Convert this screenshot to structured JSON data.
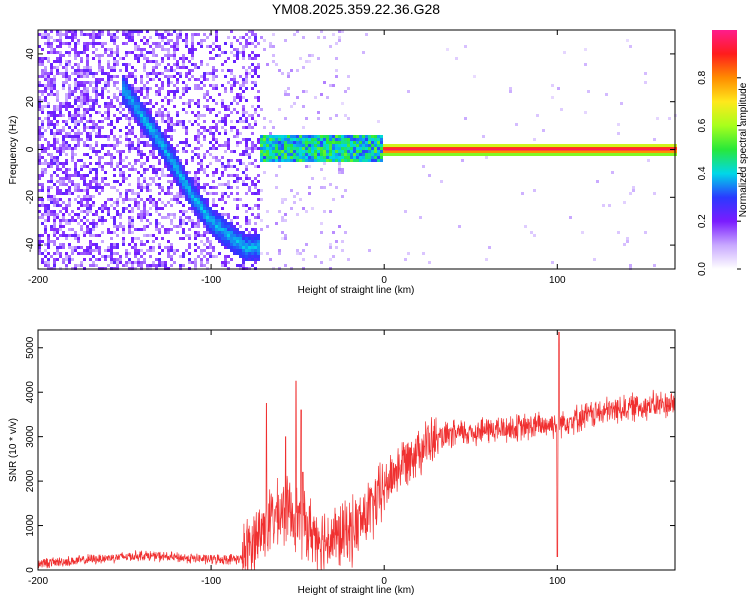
{
  "title": "YM08.2025.359.22.36.G28",
  "chart_data": [
    {
      "type": "heatmap",
      "xlabel": "Height of straight line (km)",
      "ylabel": "Frequency (Hz)",
      "xlim": [
        -200,
        168
      ],
      "ylim": [
        -50,
        50
      ],
      "x_ticks": [
        -200,
        -100,
        0,
        100
      ],
      "x_tick_labels": [
        "-200",
        "-100",
        "0",
        "100"
      ],
      "y_ticks": [
        -40,
        -20,
        0,
        20,
        40
      ],
      "y_tick_labels": [
        "-40",
        "-20",
        "0",
        "20",
        "40"
      ],
      "colorbar": {
        "label": "Normalized spectral amplitude",
        "range": [
          0,
          1
        ],
        "ticks": [
          0.0,
          0.2,
          0.4,
          0.6,
          0.8
        ],
        "tick_labels": [
          "0.0",
          "0.2",
          "0.4",
          "0.6",
          "0.8"
        ],
        "colormap": [
          "#ffffff",
          "#c8a8ff",
          "#7a1cff",
          "#2a3aff",
          "#00d8e8",
          "#28e83a",
          "#a8ff1c",
          "#ffe81c",
          "#ff8c00",
          "#ff1c1c",
          "#ff1c8c"
        ]
      },
      "features": {
        "noise_region_x": [
          -200,
          -72
        ],
        "chirp_track": [
          {
            "x": -150,
            "y": 25
          },
          {
            "x": -140,
            "y": 14
          },
          {
            "x": -130,
            "y": 4
          },
          {
            "x": -120,
            "y": -8
          },
          {
            "x": -110,
            "y": -20
          },
          {
            "x": -100,
            "y": -30
          },
          {
            "x": -90,
            "y": -36
          },
          {
            "x": -80,
            "y": -41
          }
        ],
        "carrier_start_x": -72,
        "carrier_freq": 0
      }
    },
    {
      "type": "line",
      "xlabel": "Height of straight line (km)",
      "ylabel": "SNR (10 * v/v)",
      "xlim": [
        -200,
        168
      ],
      "ylim": [
        0,
        5400
      ],
      "x_ticks": [
        -200,
        -100,
        0,
        100
      ],
      "x_tick_labels": [
        "-200",
        "-100",
        "0",
        "100"
      ],
      "y_ticks": [
        0,
        1000,
        2000,
        3000,
        4000,
        5000
      ],
      "y_tick_labels": [
        "0",
        "1000",
        "2000",
        "3000",
        "4000",
        "5000"
      ],
      "color": "#f03030",
      "trend": [
        {
          "x": -200,
          "y": 150
        },
        {
          "x": -180,
          "y": 200
        },
        {
          "x": -160,
          "y": 270
        },
        {
          "x": -140,
          "y": 330
        },
        {
          "x": -120,
          "y": 280
        },
        {
          "x": -100,
          "y": 240
        },
        {
          "x": -82,
          "y": 250
        },
        {
          "x": -75,
          "y": 700
        },
        {
          "x": -65,
          "y": 1150
        },
        {
          "x": -55,
          "y": 1350
        },
        {
          "x": -45,
          "y": 950
        },
        {
          "x": -35,
          "y": 700
        },
        {
          "x": -25,
          "y": 750
        },
        {
          "x": -15,
          "y": 1000
        },
        {
          "x": -5,
          "y": 1500
        },
        {
          "x": 5,
          "y": 2150
        },
        {
          "x": 15,
          "y": 2600
        },
        {
          "x": 25,
          "y": 2850
        },
        {
          "x": 40,
          "y": 3050
        },
        {
          "x": 60,
          "y": 3150
        },
        {
          "x": 80,
          "y": 3200
        },
        {
          "x": 100,
          "y": 3300
        },
        {
          "x": 120,
          "y": 3500
        },
        {
          "x": 140,
          "y": 3650
        },
        {
          "x": 168,
          "y": 3750
        }
      ],
      "spikes": [
        {
          "x": -51,
          "y": 4250
        },
        {
          "x": -48,
          "y": 3600
        },
        {
          "x": -47,
          "y": 2200
        },
        {
          "x": -68,
          "y": 3750
        },
        {
          "x": -57,
          "y": 3000
        },
        {
          "x": 101,
          "y": 5350
        },
        {
          "x": 100,
          "y": 300
        }
      ]
    }
  ]
}
